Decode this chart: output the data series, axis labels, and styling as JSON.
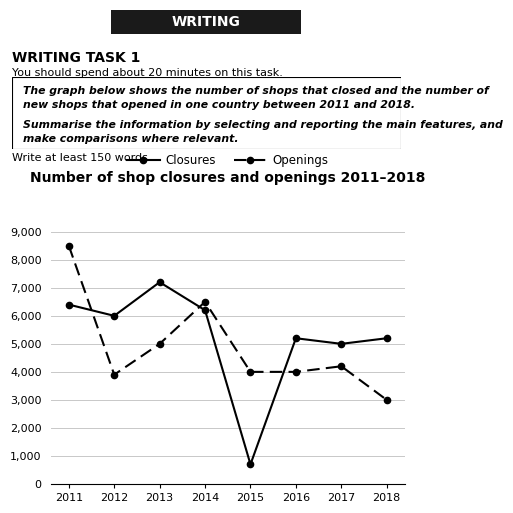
{
  "title": "Number of shop closures and openings 2011–2018",
  "years": [
    2011,
    2012,
    2013,
    2014,
    2015,
    2016,
    2017,
    2018
  ],
  "closures": [
    6400,
    6000,
    7200,
    6200,
    700,
    5200,
    5000,
    5200
  ],
  "openings": [
    8500,
    3900,
    5000,
    6500,
    4000,
    4000,
    4200,
    3000
  ],
  "closures_label": "Closures",
  "openings_label": "Openings",
  "ylim": [
    0,
    9500
  ],
  "yticks": [
    0,
    1000,
    2000,
    3000,
    4000,
    5000,
    6000,
    7000,
    8000,
    9000
  ],
  "ytick_labels": [
    "0",
    "1,000",
    "2,000",
    "3,000",
    "4,000",
    "5,000",
    "6,000",
    "7,000",
    "8,000",
    "9,000"
  ],
  "grid_color": "#c8c8c8",
  "bg_color": "#ffffff",
  "header_text": "WRITING",
  "header_bg": "#1a1a1a",
  "header_fg": "#ffffff",
  "task_title": "WRITING TASK 1",
  "task_subtitle": "You should spend about 20 minutes on this task.",
  "box_italic1": "The graph below shows the number of shops that closed and the number of",
  "box_italic2": "new shops that opened in one country between 2011 and 2018.",
  "box_italic3": "Summarise the information by selecting and reporting the main features, and",
  "box_italic4": "make comparisons where relevant.",
  "below_box": "Write at least 150 words."
}
